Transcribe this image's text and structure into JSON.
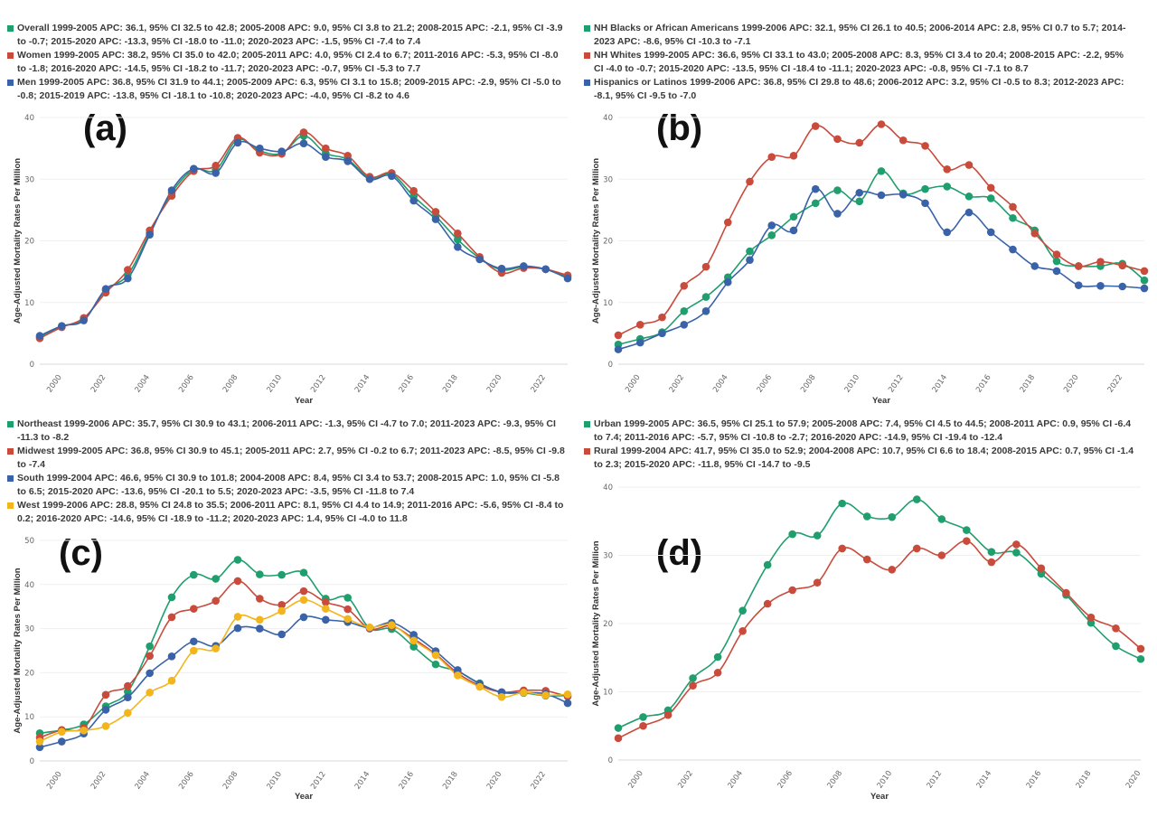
{
  "chart_data": [
    {
      "type": "line",
      "panel": "(a)",
      "xlabel": "Year",
      "ylabel": "Age-Adjusted Mortality Rates Per Million",
      "ylim": [
        0,
        40
      ],
      "yticks": [
        0,
        10,
        20,
        30,
        40
      ],
      "xticks": [
        2000,
        2002,
        2004,
        2006,
        2008,
        2010,
        2012,
        2014,
        2016,
        2018,
        2020,
        2022
      ],
      "xlim": [
        1999,
        2023
      ],
      "x": [
        1999,
        2000,
        2001,
        2002,
        2003,
        2004,
        2005,
        2006,
        2007,
        2008,
        2009,
        2010,
        2011,
        2012,
        2013,
        2014,
        2015,
        2016,
        2017,
        2018,
        2019,
        2020,
        2021,
        2022,
        2023
      ],
      "grid": true,
      "legend_position": "top",
      "series": [
        {
          "name": "Overall 1999-2005 APC: 36.1, 95% CI 32.5 to 42.8; 2005-2008 APC: 9.0, 95% CI 3.8 to 21.2; 2008-2015 APC: -2.1, 95% CI -3.9 to -0.7; 2015-2020 APC: -13.3, 95% CI -18.0 to -11.0; 2020-2023 APC: -1.5, 95% CI -7.4 to 7.4",
          "color": "#1f9e6e",
          "values": [
            4.4,
            6.1,
            7.3,
            12.0,
            14.5,
            21.3,
            27.8,
            31.5,
            31.5,
            36.4,
            34.6,
            34.2,
            37.0,
            34.2,
            33.2,
            30.2,
            30.8,
            27.2,
            24.0,
            20.2,
            17.2,
            15.3,
            15.8,
            15.4,
            14.2
          ]
        },
        {
          "name": "Women 1999-2005 APC: 38.2, 95% CI 35.0 to 42.0; 2005-2011 APC: 4.0, 95% CI 2.4 to 6.7; 2011-2016 APC: -5.3, 95% CI -8.0 to -1.8; 2016-2020 APC: -14.5, 95% CI -18.2 to -11.7; 2020-2023 APC: -0.7, 95% CI -5.3 to 7.7",
          "color": "#c84b3c",
          "values": [
            4.2,
            6.0,
            7.5,
            11.6,
            15.3,
            21.7,
            27.3,
            31.3,
            32.2,
            36.7,
            34.3,
            34.1,
            37.6,
            35.0,
            33.8,
            30.4,
            31.0,
            28.1,
            24.7,
            21.2,
            17.4,
            14.8,
            15.6,
            15.4,
            14.4
          ]
        },
        {
          "name": "Men 1999-2005 APC: 36.8, 95% CI 31.9 to 44.1; 2005-2009 APC: 6.3, 95% CI 3.1 to 15.8; 2009-2015 APC: -2.9, 95% CI -5.0 to -0.8; 2015-2019 APC: -13.8, 95% CI -18.1 to -10.8; 2020-2023 APC: -4.0, 95% CI -8.2 to 4.6",
          "color": "#3a62a8",
          "values": [
            4.6,
            6.2,
            7.1,
            12.2,
            13.9,
            21.0,
            28.2,
            31.7,
            31.0,
            35.9,
            35.0,
            34.5,
            35.8,
            33.6,
            32.9,
            30.0,
            30.5,
            26.5,
            23.5,
            19.0,
            17.0,
            15.5,
            15.9,
            15.4,
            13.9
          ]
        }
      ]
    },
    {
      "type": "line",
      "panel": "(b)",
      "xlabel": "Year",
      "ylabel": "Age-Adjusted Mortality Rates Per Million",
      "ylim": [
        0,
        40
      ],
      "yticks": [
        0,
        10,
        20,
        30,
        40
      ],
      "xticks": [
        2000,
        2002,
        2004,
        2006,
        2008,
        2010,
        2012,
        2014,
        2016,
        2018,
        2020,
        2022
      ],
      "xlim": [
        1999,
        2023
      ],
      "x": [
        1999,
        2000,
        2001,
        2002,
        2003,
        2004,
        2005,
        2006,
        2007,
        2008,
        2009,
        2010,
        2011,
        2012,
        2013,
        2014,
        2015,
        2016,
        2017,
        2018,
        2019,
        2020,
        2021,
        2022,
        2023
      ],
      "grid": true,
      "legend_position": "top",
      "series": [
        {
          "name": "NH Blacks or African Americans 1999-2006 APC: 32.1, 95% CI 26.1 to 40.5; 2006-2014 APC: 2.8, 95% CI 0.7 to 5.7; 2014-2023 APC: -8.6, 95% CI -10.3 to -7.1",
          "color": "#1f9e6e",
          "values": [
            3.2,
            4.1,
            5.2,
            8.6,
            10.9,
            14.1,
            18.3,
            20.9,
            23.9,
            26.1,
            28.2,
            26.4,
            31.3,
            27.7,
            28.4,
            28.8,
            27.2,
            26.9,
            23.7,
            21.7,
            16.7,
            15.9,
            15.9,
            16.3,
            13.6
          ]
        },
        {
          "name": "NH Whites 1999-2005 APC: 36.6, 95% CI 33.1 to 43.0; 2005-2008 APC: 8.3, 95% CI 3.4 to 20.4; 2008-2015 APC: -2.2, 95% CI -4.0 to -0.7; 2015-2020 APC: -13.5, 95% CI -18.4 to -11.1; 2020-2023 APC: -0.8, 95% CI -7.1 to 8.7",
          "color": "#c84b3c",
          "values": [
            4.7,
            6.4,
            7.6,
            12.7,
            15.8,
            23.0,
            29.6,
            33.6,
            33.8,
            38.6,
            36.5,
            35.9,
            38.9,
            36.3,
            35.4,
            31.6,
            32.3,
            28.6,
            25.5,
            21.2,
            17.8,
            15.9,
            16.6,
            16.0,
            15.1
          ]
        },
        {
          "name": "Hispanics or Latinos 1999-2006 APC: 36.8, 95% CI 29.8 to 48.6; 2006-2012 APC: 3.2, 95% CI -0.5 to 8.3; 2012-2023 APC: -8.1, 95% CI -9.5 to -7.0",
          "color": "#3a62a8",
          "values": [
            2.4,
            3.5,
            5.0,
            6.4,
            8.6,
            13.3,
            16.9,
            22.5,
            21.7,
            28.4,
            24.4,
            27.8,
            27.4,
            27.5,
            26.1,
            21.4,
            24.6,
            21.4,
            18.6,
            15.9,
            15.1,
            12.8,
            12.7,
            12.6,
            12.3
          ]
        }
      ]
    },
    {
      "type": "line",
      "panel": "(c)",
      "xlabel": "Year",
      "ylabel": "Age-Adjusted Mortality Rates Per Million",
      "ylim": [
        0,
        50
      ],
      "yticks": [
        0,
        10,
        20,
        30,
        40,
        50
      ],
      "xticks": [
        2000,
        2002,
        2004,
        2006,
        2008,
        2010,
        2012,
        2014,
        2016,
        2018,
        2020,
        2022
      ],
      "xlim": [
        1999,
        2023
      ],
      "x": [
        1999,
        2000,
        2001,
        2002,
        2003,
        2004,
        2005,
        2006,
        2007,
        2008,
        2009,
        2010,
        2011,
        2012,
        2013,
        2014,
        2015,
        2016,
        2017,
        2018,
        2019,
        2020,
        2021,
        2022,
        2023
      ],
      "grid": true,
      "legend_position": "top",
      "series": [
        {
          "name": "Northeast 1999-2006 APC: 35.7, 95% CI 30.9 to 43.1; 2006-2011 APC: -1.3, 95% CI -4.7 to 7.0; 2011-2023 APC: -9.3, 95% CI -11.3 to -8.2",
          "color": "#1f9e6e",
          "values": [
            6.3,
            7.0,
            8.3,
            12.4,
            15.7,
            26.0,
            37.1,
            42.2,
            41.3,
            45.6,
            42.3,
            42.2,
            42.7,
            36.8,
            37.0,
            30.1,
            29.9,
            25.9,
            21.9,
            20.3,
            17.6,
            15.5,
            15.4,
            14.8,
            14.8
          ]
        },
        {
          "name": "Midwest 1999-2005 APC: 36.8, 95% CI 30.9 to 45.1; 2005-2011 APC: 2.7, 95% CI -0.2 to 6.7; 2011-2023 APC: -8.5, 95% CI -9.8 to -7.4",
          "color": "#c84b3c",
          "values": [
            5.3,
            7.0,
            7.5,
            15.0,
            17.0,
            23.8,
            32.6,
            34.5,
            36.3,
            40.8,
            36.8,
            35.4,
            38.5,
            36.0,
            34.4,
            30.0,
            30.6,
            27.7,
            24.2,
            19.9,
            17.1,
            15.6,
            16.0,
            15.9,
            14.6
          ]
        },
        {
          "name": "South 1999-2004 APC: 46.6, 95% CI 30.9 to 101.8; 2004-2008 APC: 8.4, 95% CI 3.4 to 53.7; 2008-2015 APC: 1.0, 95% CI -5.8 to 6.5; 2015-2020 APC: -13.6, 95% CI -20.1 to 5.5; 2020-2023 APC: -3.5, 95% CI -11.8 to 7.4",
          "color": "#3a62a8",
          "values": [
            3.1,
            4.4,
            6.2,
            11.6,
            14.4,
            19.9,
            23.7,
            27.1,
            26.1,
            30.1,
            30.0,
            28.7,
            32.6,
            32.0,
            31.5,
            30.2,
            31.3,
            28.6,
            24.9,
            20.6,
            17.5,
            15.6,
            15.5,
            15.2,
            13.1
          ]
        },
        {
          "name": "West 1999-2006 APC: 28.8, 95% CI 24.8 to 35.5; 2006-2011 APC: 8.1, 95% CI 4.4 to 14.9; 2011-2016 APC: -5.6, 95% CI -8.4 to 0.2; 2016-2020 APC: -14.6, 95% CI -18.9 to -11.2; 2020-2023 APC: 1.4, 95% CI -4.0 to 11.8",
          "color": "#f2b51c",
          "values": [
            4.4,
            6.6,
            6.9,
            7.9,
            10.9,
            15.5,
            18.2,
            25.0,
            25.5,
            32.7,
            32.0,
            34.0,
            36.5,
            34.5,
            32.2,
            30.3,
            30.8,
            27.3,
            24.0,
            19.4,
            16.8,
            14.5,
            15.5,
            14.9,
            15.1
          ]
        }
      ]
    },
    {
      "type": "line",
      "panel": "(d)",
      "xlabel": "Year",
      "ylabel": "Age-Adjusted Mortality Rates Per Million",
      "ylim": [
        0,
        40
      ],
      "yticks": [
        0,
        10,
        20,
        30,
        40
      ],
      "xticks": [
        2000,
        2002,
        2004,
        2006,
        2008,
        2010,
        2012,
        2014,
        2016,
        2018,
        2020
      ],
      "xlim": [
        1999,
        2020
      ],
      "x": [
        1999,
        2000,
        2001,
        2002,
        2003,
        2004,
        2005,
        2006,
        2007,
        2008,
        2009,
        2010,
        2011,
        2012,
        2013,
        2014,
        2015,
        2016,
        2017,
        2018,
        2019,
        2020
      ],
      "grid": true,
      "legend_position": "top",
      "series": [
        {
          "name": "Urban 1999-2005 APC: 36.5, 95% CI 25.1 to 57.9; 2005-2008 APC: 7.4, 95% CI 4.5 to 44.5; 2008-2011 APC: 0.9, 95% CI -6.4 to 7.4; 2011-2016 APC: -5.7, 95% CI -10.8 to -2.7; 2016-2020 APC: -14.9, 95% CI -19.4 to -12.4",
          "color": "#1f9e6e",
          "values": [
            4.7,
            6.3,
            7.3,
            12.0,
            15.1,
            21.9,
            28.6,
            33.1,
            32.9,
            37.6,
            35.7,
            35.6,
            38.2,
            35.3,
            33.7,
            30.5,
            30.4,
            27.3,
            24.2,
            20.1,
            16.7,
            14.8
          ]
        },
        {
          "name": "Rural 1999-2004 APC: 41.7, 95% CI 35.0 to 52.9; 2004-2008 APC: 10.7, 95% CI 6.6 to 18.4; 2008-2015 APC: 0.7, 95% CI -1.4 to 2.3; 2015-2020 APC: -11.8, 95% CI -14.7 to -9.5",
          "color": "#c84b3c",
          "values": [
            3.2,
            5.0,
            6.6,
            10.9,
            12.8,
            18.9,
            22.9,
            24.9,
            26.0,
            31.0,
            29.4,
            27.9,
            31.0,
            30.0,
            32.1,
            29.0,
            31.6,
            28.1,
            24.5,
            20.9,
            19.3,
            16.3
          ]
        }
      ]
    }
  ]
}
